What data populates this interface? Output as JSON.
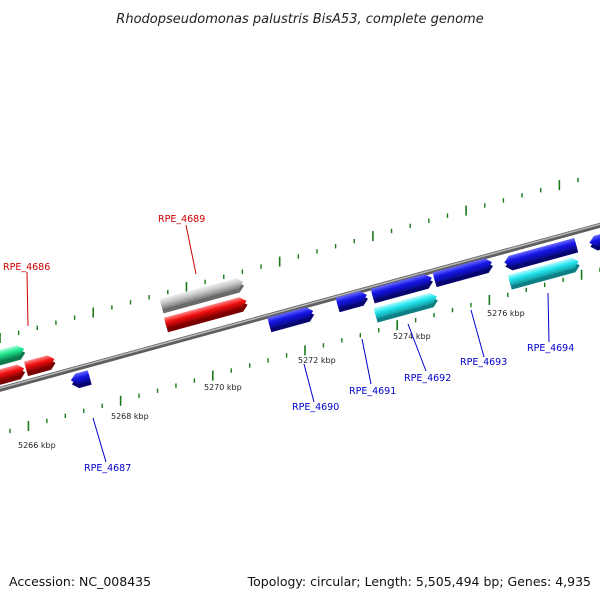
{
  "title": "Rhodopseudomonas palustris BisA53, complete genome",
  "footer": {
    "accession": "Accession: NC_008435",
    "summary": "Topology: circular; Length: 5,505,494 bp; Genes: 4,935"
  },
  "colors": {
    "backbone": "#8a8a8a",
    "tick": "#1a7a1a",
    "blue_gene": "#1515e6",
    "cyan_gene": "#22e6ee",
    "red_gene": "#f21010",
    "gray_gene": "#c6c6c6",
    "green_gene": "#20e890",
    "red_label": "#cc0000",
    "blue_label": "#0000cc"
  },
  "kbp_labels": [
    "5266 kbp",
    "5268 kbp",
    "5270 kbp",
    "5272 kbp",
    "5274 kbp",
    "5276 kbp"
  ],
  "gene_labels": [
    {
      "text": "RPE_4686",
      "color": "red"
    },
    {
      "text": "RPE_4689",
      "color": "red"
    },
    {
      "text": "RPE_4687",
      "color": "blue"
    },
    {
      "text": "RPE_4690",
      "color": "blue"
    },
    {
      "text": "RPE_4691",
      "color": "blue"
    },
    {
      "text": "RPE_4692",
      "color": "blue"
    },
    {
      "text": "RPE_4693",
      "color": "blue"
    },
    {
      "text": "RPE_4694",
      "color": "blue"
    }
  ]
}
